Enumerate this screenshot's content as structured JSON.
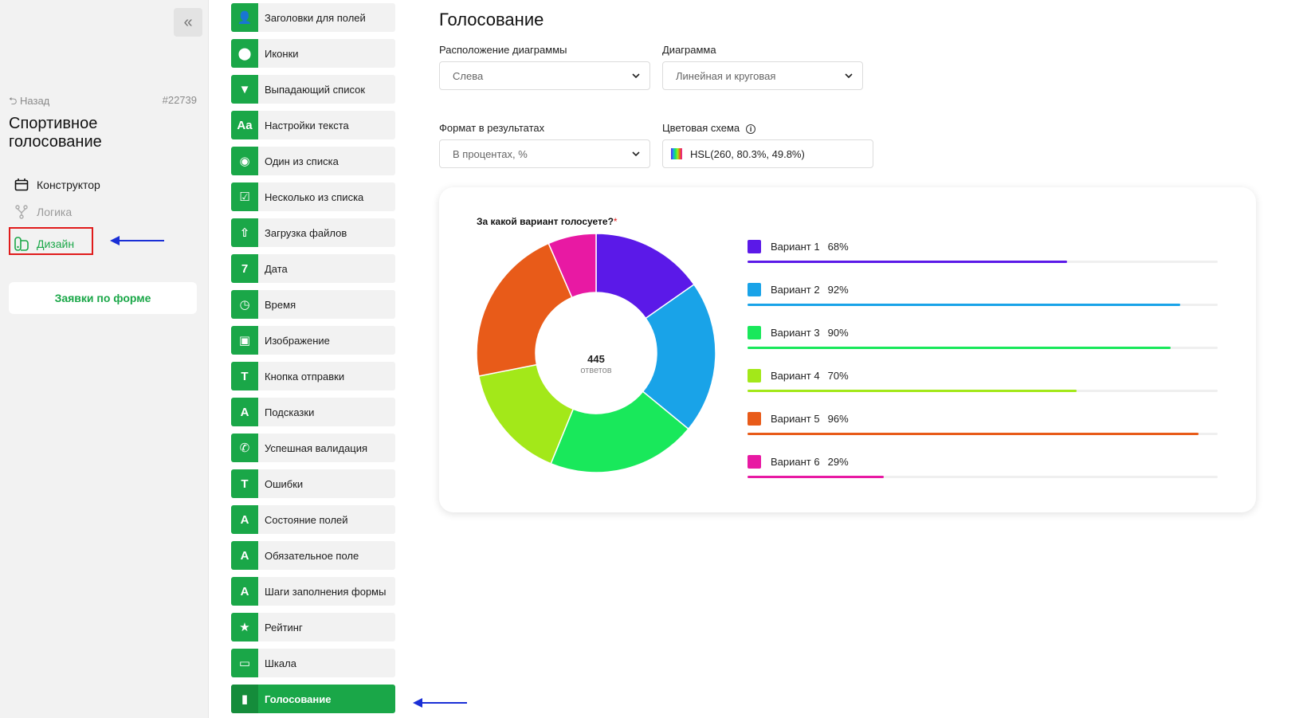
{
  "sidebar": {
    "collapse_glyph": "«",
    "back_label": "⮌ Назад",
    "form_id": "#22739",
    "form_title": "Спортивное голосование",
    "nav": [
      {
        "label": "Конструктор",
        "icon": "calendar-icon"
      },
      {
        "label": "Логика",
        "icon": "branch-icon"
      },
      {
        "label": "Дизайн",
        "icon": "design-icon"
      }
    ],
    "requests_label": "Заявки по форме"
  },
  "components": [
    {
      "label": "Заголовки для полей",
      "icon": "user-icon",
      "glyph": "👤"
    },
    {
      "label": "Иконки",
      "icon": "pin-icon",
      "glyph": "⬤"
    },
    {
      "label": "Выпадающий список",
      "icon": "dropdown-icon",
      "glyph": "▼"
    },
    {
      "label": "Настройки текста",
      "icon": "text-settings-icon",
      "glyph": "Aa"
    },
    {
      "label": "Один из списка",
      "icon": "radio-icon",
      "glyph": "◉"
    },
    {
      "label": "Несколько из списка",
      "icon": "checkbox-icon",
      "glyph": "☑"
    },
    {
      "label": "Загрузка файлов",
      "icon": "upload-icon",
      "glyph": "⇧"
    },
    {
      "label": "Дата",
      "icon": "date-icon",
      "glyph": "7"
    },
    {
      "label": "Время",
      "icon": "clock-icon",
      "glyph": "◷"
    },
    {
      "label": "Изображение",
      "icon": "image-icon",
      "glyph": "▣"
    },
    {
      "label": "Кнопка отправки",
      "icon": "submit-icon",
      "glyph": "T"
    },
    {
      "label": "Подсказки",
      "icon": "hint-icon",
      "glyph": "A"
    },
    {
      "label": "Успешная валидация",
      "icon": "phone-icon",
      "glyph": "✆"
    },
    {
      "label": "Ошибки",
      "icon": "error-icon",
      "glyph": "T"
    },
    {
      "label": "Состояние полей",
      "icon": "field-state-icon",
      "glyph": "A"
    },
    {
      "label": "Обязательное поле",
      "icon": "required-icon",
      "glyph": "A"
    },
    {
      "label": "Шаги заполнения формы",
      "icon": "steps-icon",
      "glyph": "A"
    },
    {
      "label": "Рейтинг",
      "icon": "star-icon",
      "glyph": "★"
    },
    {
      "label": "Шкала",
      "icon": "scale-icon",
      "glyph": "▭"
    },
    {
      "label": "Голосование",
      "icon": "voting-icon",
      "glyph": "▮",
      "active": true
    }
  ],
  "main": {
    "title": "Голосование",
    "chart_position_label": "Расположение диаграммы",
    "chart_position_value": "Слева",
    "chart_type_label": "Диаграмма",
    "chart_type_value": "Линейная и круговая",
    "format_label": "Формат в результатах",
    "format_value": "В процентах, %",
    "color_scheme_label": "Цветовая схема",
    "color_scheme_value": "HSL(260, 80.3%, 49.8%)"
  },
  "card": {
    "question": "За какой вариант голосуете?",
    "required_mark": "*",
    "total": "445",
    "total_sub": "ответов"
  },
  "chart_data": {
    "type": "pie",
    "categories": [
      "Вариант 1",
      "Вариант 2",
      "Вариант 3",
      "Вариант 4",
      "Вариант 5",
      "Вариант 6"
    ],
    "values": [
      68,
      92,
      90,
      70,
      96,
      29
    ],
    "value_labels": [
      "68%",
      "92%",
      "90%",
      "70%",
      "96%",
      "29%"
    ],
    "colors": [
      "#5b19e8",
      "#19a3e8",
      "#19e85b",
      "#a3e819",
      "#e85b19",
      "#e819a3"
    ],
    "total_responses": 445
  }
}
